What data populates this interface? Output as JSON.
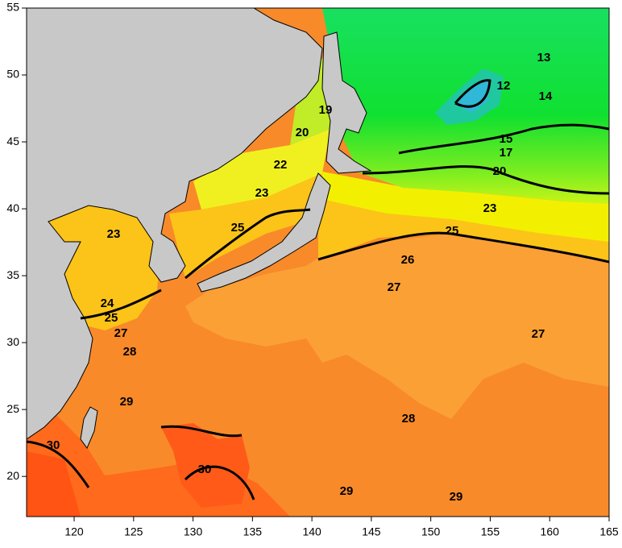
{
  "map": {
    "axes": {
      "xlim": [
        116,
        165
      ],
      "ylim": [
        17,
        55
      ],
      "xticks": [
        120,
        125,
        130,
        135,
        140,
        145,
        150,
        155,
        160,
        165
      ],
      "yticks": [
        20,
        25,
        30,
        35,
        40,
        45,
        50,
        55
      ]
    },
    "contour_labels": [
      13,
      12,
      14,
      19,
      20,
      15,
      17,
      22,
      20,
      23,
      23,
      25,
      25,
      23,
      26,
      27,
      24,
      25,
      27,
      28,
      27,
      29,
      28,
      30,
      30,
      29,
      29
    ]
  }
}
